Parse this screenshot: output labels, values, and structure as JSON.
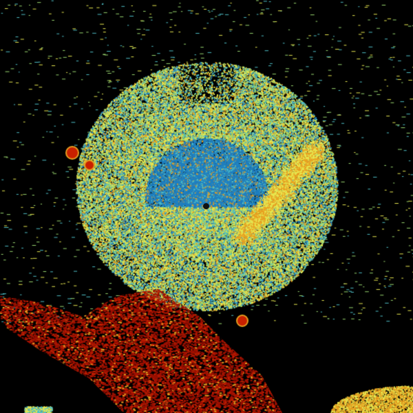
{
  "image": {
    "kind": "radar-sweep",
    "background": "#000000",
    "palette": {
      "blue": "#1f7fc0",
      "cyan": "#4fc0c8",
      "green": "#9ad870",
      "yellow": "#e8e850",
      "orange": "#e8a020",
      "red": "#c82000",
      "darkred": "#a01000"
    }
  }
}
